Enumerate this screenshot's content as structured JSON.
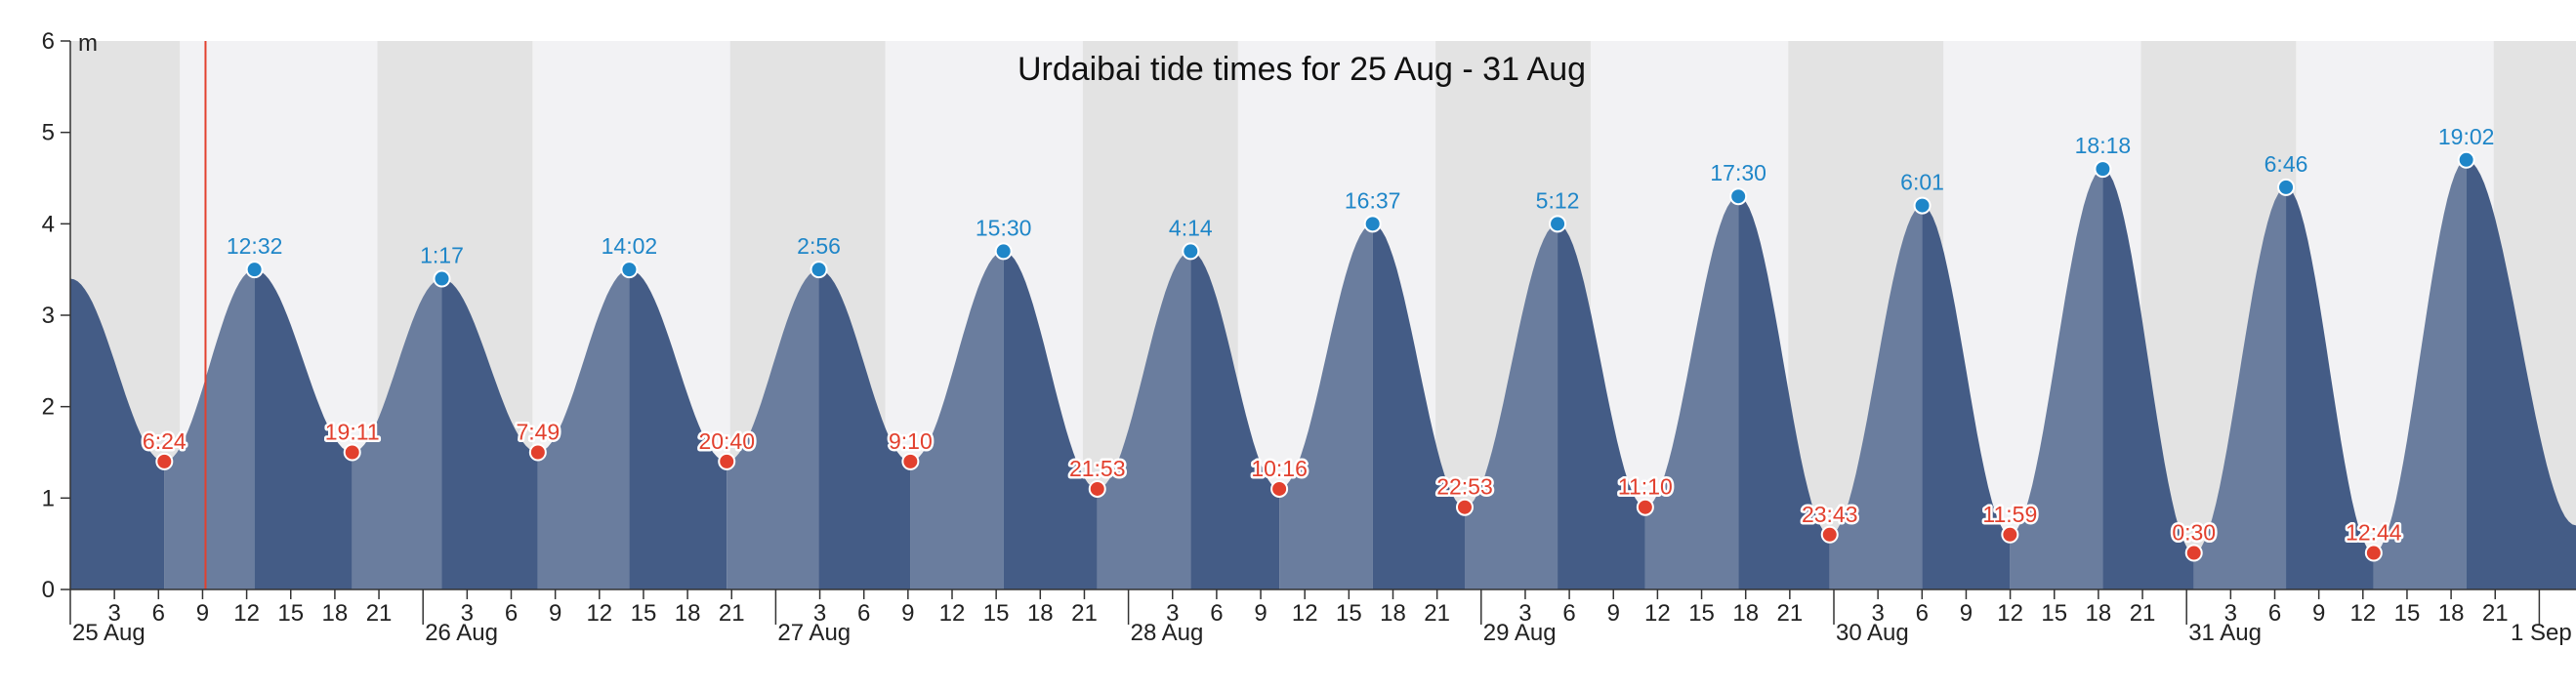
{
  "chart_data": {
    "type": "area",
    "title": "Urdaibai tide times for 25 Aug - 31 Aug",
    "ylabel": "m",
    "ylim": [
      0,
      6
    ],
    "yticks": [
      0,
      1,
      2,
      3,
      4,
      5,
      6
    ],
    "xlim_hours": [
      0,
      170.5
    ],
    "start_day": "25 Aug",
    "day_labels": [
      "25 Aug",
      "26 Aug",
      "27 Aug",
      "28 Aug",
      "29 Aug",
      "30 Aug",
      "31 Aug",
      "1 Sep"
    ],
    "hour_ticks": [
      "3",
      "6",
      "9",
      "12",
      "15",
      "18",
      "21"
    ],
    "start_level": 3.4,
    "end_level": 0.7,
    "current_time_hour": 9.2,
    "night_bands_hours": [
      [
        0,
        7.45
      ],
      [
        20.9,
        31.45
      ],
      [
        44.9,
        55.45
      ],
      [
        68.9,
        79.45
      ],
      [
        92.9,
        103.45
      ],
      [
        116.9,
        127.45
      ],
      [
        140.9,
        151.45
      ],
      [
        164.9,
        170.5
      ]
    ],
    "highs": [
      {
        "time": "12:32",
        "height": 3.5
      },
      {
        "time": "1:17",
        "height": 3.4
      },
      {
        "time": "14:02",
        "height": 3.5
      },
      {
        "time": "2:56",
        "height": 3.5
      },
      {
        "time": "15:30",
        "height": 3.7
      },
      {
        "time": "4:14",
        "height": 3.7
      },
      {
        "time": "16:37",
        "height": 4.0
      },
      {
        "time": "5:12",
        "height": 4.0
      },
      {
        "time": "17:30",
        "height": 4.3
      },
      {
        "time": "6:01",
        "height": 4.2
      },
      {
        "time": "18:18",
        "height": 4.6
      },
      {
        "time": "6:46",
        "height": 4.4
      },
      {
        "time": "19:02",
        "height": 4.7
      }
    ],
    "lows": [
      {
        "time": "6:24",
        "height": 1.4
      },
      {
        "time": "19:11",
        "height": 1.5
      },
      {
        "time": "7:49",
        "height": 1.5
      },
      {
        "time": "20:40",
        "height": 1.4
      },
      {
        "time": "9:10",
        "height": 1.4
      },
      {
        "time": "21:53",
        "height": 1.1
      },
      {
        "time": "10:16",
        "height": 1.1
      },
      {
        "time": "22:53",
        "height": 0.9
      },
      {
        "time": "11:10",
        "height": 0.9
      },
      {
        "time": "23:43",
        "height": 0.6
      },
      {
        "time": "11:59",
        "height": 0.6
      },
      {
        "time": "0:30",
        "height": 0.4
      },
      {
        "time": "12:44",
        "height": 0.4
      }
    ],
    "colors": {
      "night_band": "#e3e3e3",
      "day_band": "#f2f2f4",
      "fill_dark": "#445c86",
      "fill_light": "#6a7d9e",
      "high_marker": "#1f86c8",
      "low_marker": "#e2402e",
      "current_time_line": "#e2402e"
    }
  }
}
